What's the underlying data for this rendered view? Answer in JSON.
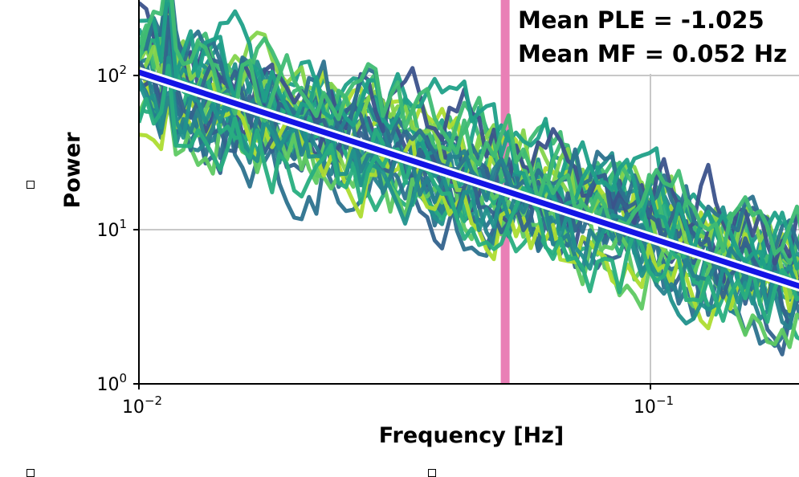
{
  "chart_data": {
    "type": "line",
    "title": "",
    "xlabel": "Frequency [Hz]",
    "ylabel": "Power",
    "xscale": "log",
    "yscale": "log",
    "xlim": [
      0.01,
      0.2
    ],
    "ylim": [
      1,
      300
    ],
    "xticks": [
      {
        "value": 0.01,
        "base": "10",
        "exp": "−2"
      },
      {
        "value": 0.1,
        "base": "10",
        "exp": "−1"
      }
    ],
    "yticks": [
      {
        "value": 1,
        "base": "10",
        "exp": "0"
      },
      {
        "value": 10,
        "base": "10",
        "exp": "1"
      },
      {
        "value": 100,
        "base": "10",
        "exp": "2"
      }
    ],
    "grid": true,
    "annotations": [
      "Mean PLE = -1.025",
      "Mean MF = 0.052 Hz"
    ],
    "fit_line": {
      "slope": -1.025,
      "x": [
        0.01,
        0.2
      ],
      "y": [
        105,
        4.2
      ],
      "color": "#1414e6"
    },
    "median_frequency": {
      "x": 0.052,
      "color": "#e97fb6"
    },
    "colormap": [
      "#3b528b",
      "#33638d",
      "#2c728e",
      "#26828e",
      "#21918c",
      "#1fa088",
      "#28ae80",
      "#3fbc73",
      "#5ec962",
      "#84d44b",
      "#addc30"
    ],
    "series_count": 30
  },
  "page": {
    "markers": [
      "",
      "",
      ""
    ]
  }
}
